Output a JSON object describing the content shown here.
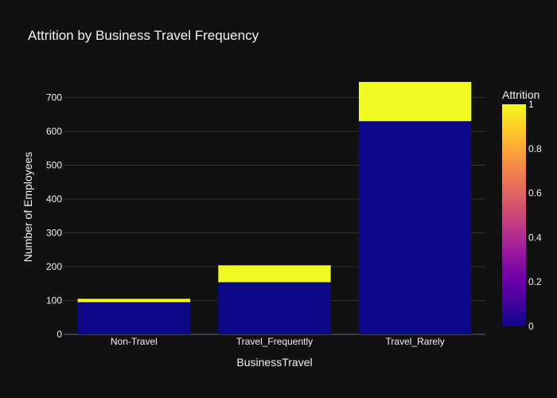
{
  "chart_data": {
    "type": "bar",
    "barmode": "stack",
    "title": "Attrition by Business Travel Frequency",
    "xlabel": "BusinessTravel",
    "ylabel": "Number of Employees",
    "categories": [
      "Non-Travel",
      "Travel_Frequently",
      "Travel_Rarely"
    ],
    "series": [
      {
        "attrition": 0,
        "values": [
          95,
          154,
          630
        ],
        "color": "#0d0887"
      },
      {
        "attrition": 1,
        "values": [
          10,
          50,
          116
        ],
        "color": "#f0f921"
      }
    ],
    "ylim": [
      0,
      800
    ],
    "yticks": [
      0,
      100,
      200,
      300,
      400,
      500,
      600,
      700
    ],
    "grid": true,
    "colorbar": {
      "title": "Attrition",
      "range": [
        0,
        1
      ],
      "ticks": [
        "0",
        "0.2",
        "0.4",
        "0.6",
        "0.8",
        "1"
      ],
      "colors": [
        "#0d0887",
        "#46039f",
        "#7201a8",
        "#9c179e",
        "#bd3786",
        "#d8576b",
        "#ed7953",
        "#fb9f3a",
        "#fdca26",
        "#f0f921"
      ]
    },
    "background": "#111111"
  }
}
